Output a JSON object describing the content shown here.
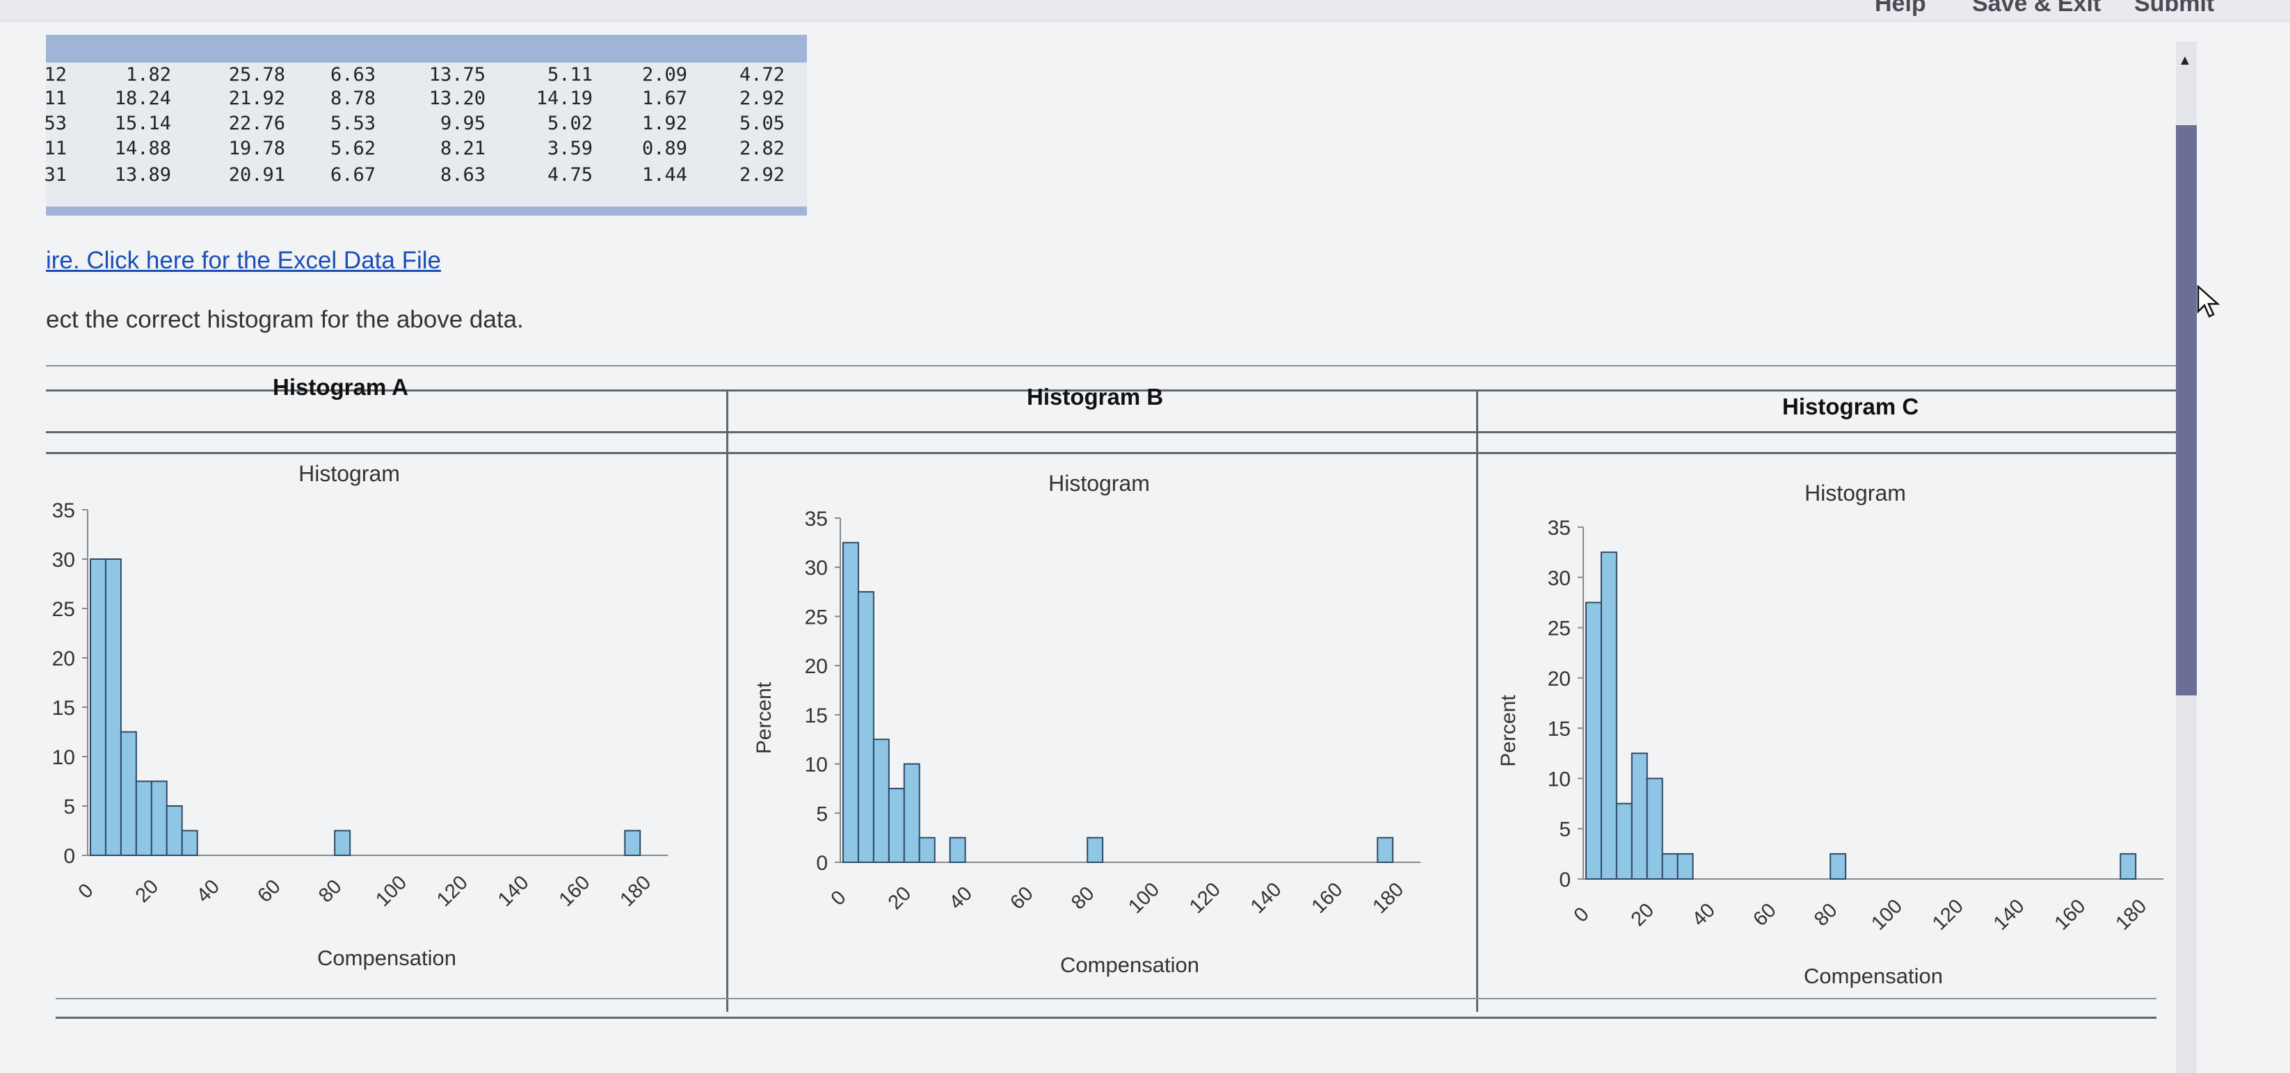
{
  "header": {
    "help": "Help",
    "save_exit": "Save & Exit",
    "submit": "Submit"
  },
  "table": {
    "rows": [
      [
        "12",
        "1.82",
        "25.78",
        "6.63",
        "13.75",
        "5.11",
        "2.09",
        "4.72"
      ],
      [
        "11",
        "18.24",
        "21.92",
        "8.78",
        "13.20",
        "14.19",
        "1.67",
        "2.92"
      ],
      [
        "53",
        "15.14",
        "22.76",
        "5.53",
        "9.95",
        "5.02",
        "1.92",
        "5.05"
      ],
      [
        "11",
        "14.88",
        "19.78",
        "5.62",
        "8.21",
        "3.59",
        "0.89",
        "2.82"
      ],
      [
        "31",
        "13.89",
        "20.91",
        "6.67",
        "8.63",
        "4.75",
        "1.44",
        "2.92"
      ]
    ]
  },
  "link_text": "ire. Click here for the Excel Data File",
  "question_text": "ect the correct histogram for the above data.",
  "panels": [
    {
      "label": "Histogram A",
      "chart_title": "Histogram",
      "ylabel": "",
      "xlabel": "Compensation"
    },
    {
      "label": "Histogram B",
      "chart_title": "Histogram",
      "ylabel": "Percent",
      "xlabel": "Compensation"
    },
    {
      "label": "Histogram C",
      "chart_title": "Histogram",
      "ylabel": "Percent",
      "xlabel": "Compensation"
    }
  ],
  "chart_data": [
    {
      "type": "bar",
      "title": "Histogram",
      "xlabel": "Compensation",
      "ylabel": "",
      "x_ticks": [
        0,
        20,
        40,
        60,
        80,
        100,
        120,
        140,
        160,
        180
      ],
      "y_ticks": [
        0,
        5,
        10,
        15,
        20,
        25,
        30,
        35
      ],
      "xlim": [
        0,
        180
      ],
      "ylim": [
        0,
        35
      ],
      "bin_width": 5,
      "series_color": "#8fc6e6",
      "bins": [
        [
          0,
          30
        ],
        [
          5,
          30
        ],
        [
          10,
          12.5
        ],
        [
          15,
          7.5
        ],
        [
          20,
          7.5
        ],
        [
          25,
          5
        ],
        [
          30,
          2.5
        ],
        [
          80,
          2.5
        ],
        [
          175,
          2.5
        ]
      ]
    },
    {
      "type": "bar",
      "title": "Histogram",
      "xlabel": "Compensation",
      "ylabel": "Percent",
      "x_ticks": [
        0,
        20,
        40,
        60,
        80,
        100,
        120,
        140,
        160,
        180
      ],
      "y_ticks": [
        0,
        5,
        10,
        15,
        20,
        25,
        30,
        35
      ],
      "xlim": [
        0,
        180
      ],
      "ylim": [
        0,
        35
      ],
      "bin_width": 5,
      "series_color": "#8fc6e6",
      "bins": [
        [
          0,
          32.5
        ],
        [
          5,
          27.5
        ],
        [
          10,
          12.5
        ],
        [
          15,
          7.5
        ],
        [
          20,
          10
        ],
        [
          25,
          2.5
        ],
        [
          35,
          2.5
        ],
        [
          80,
          2.5
        ],
        [
          175,
          2.5
        ]
      ]
    },
    {
      "type": "bar",
      "title": "Histogram",
      "xlabel": "Compensation",
      "ylabel": "Percent",
      "x_ticks": [
        0,
        20,
        40,
        60,
        80,
        100,
        120,
        140,
        160,
        180
      ],
      "y_ticks": [
        0,
        5,
        10,
        15,
        20,
        25,
        30,
        35
      ],
      "xlim": [
        0,
        180
      ],
      "ylim": [
        0,
        35
      ],
      "bin_width": 5,
      "series_color": "#8fc6e6",
      "bins": [
        [
          0,
          27.5
        ],
        [
          5,
          32.5
        ],
        [
          10,
          7.5
        ],
        [
          15,
          12.5
        ],
        [
          20,
          10
        ],
        [
          25,
          2.5
        ],
        [
          30,
          2.5
        ],
        [
          80,
          2.5
        ],
        [
          175,
          2.5
        ]
      ]
    }
  ]
}
